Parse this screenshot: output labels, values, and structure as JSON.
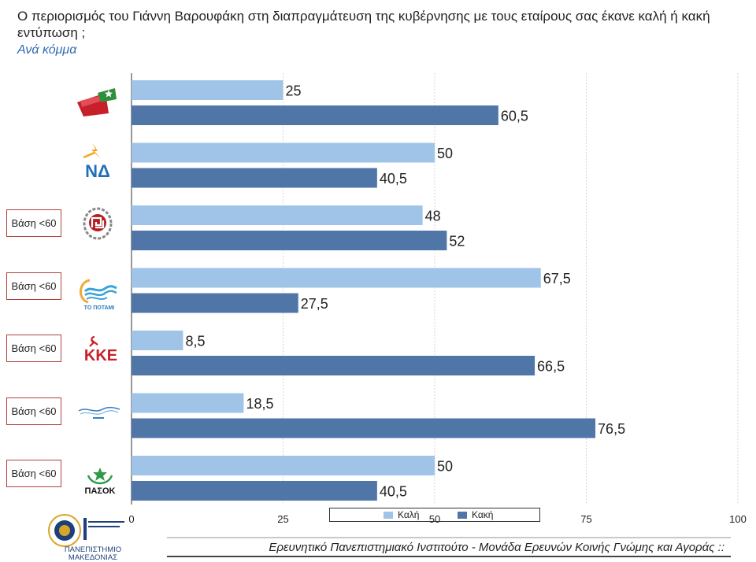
{
  "title": "Ο περιορισμός του Γιάννη Βαρουφάκη στη διαπραγμάτευση της κυβέρνησης με τους εταίρους σας έκανε καλή ή κακή εντύπωση ;",
  "subtitle": "Ανά κόμμα",
  "base_note": "Βάση <60",
  "footer": "Ερευνητικό Πανεπιστημιακό Ινστιτούτο - Μονάδα Ερευνών Κοινής Γνώμης και Αγοράς ::",
  "university": {
    "line1": "ΠΑΝΕΠΙΣΤΗΜΙΟ",
    "line2": "ΜΑΚΕΔΟΝΙΑΣ"
  },
  "party_logos": [
    {
      "icon": "syriza-logo-icon"
    },
    {
      "icon": "nd-logo-icon",
      "text": "ΝΔ"
    },
    {
      "icon": "golden-dawn-logo-icon"
    },
    {
      "icon": "potami-logo-icon",
      "text": "ΤΟ ΠΟΤΑΜΙ"
    },
    {
      "icon": "kke-logo-icon",
      "text": "ΚΚΕ"
    },
    {
      "icon": "anel-logo-icon"
    },
    {
      "icon": "pasok-logo-icon",
      "text": "ΠΑΣΟΚ"
    }
  ],
  "chart_data": {
    "type": "bar",
    "orientation": "horizontal",
    "categories": [
      "",
      "",
      "",
      "",
      "",
      "",
      ""
    ],
    "series": [
      {
        "name": "Καλή",
        "color": "#9fc4e7",
        "values": [
          25,
          50,
          48,
          67.5,
          8.5,
          18.5,
          50
        ],
        "labels": [
          "25",
          "50",
          "48",
          "67,5",
          "8,5",
          "18,5",
          "50"
        ]
      },
      {
        "name": "Κακή",
        "color": "#4f76a7",
        "values": [
          60.5,
          40.5,
          52,
          27.5,
          66.5,
          76.5,
          40.5
        ],
        "labels": [
          "60,5",
          "40,5",
          "52",
          "27,5",
          "66,5",
          "76,5",
          "40,5"
        ]
      }
    ],
    "xlim": [
      0,
      100
    ],
    "xticks": [
      "0",
      "25",
      "50",
      "75",
      "100"
    ],
    "grid": true,
    "legend": "bottom-center",
    "base_note_rows": [
      false,
      false,
      true,
      true,
      true,
      true,
      true
    ]
  }
}
